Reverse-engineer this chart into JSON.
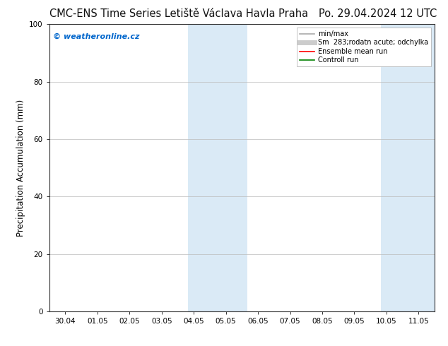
{
  "title_left": "CMC-ENS Time Series Letiště Václava Havla Praha",
  "title_right": "Po. 29.04.2024 12 UTC",
  "ylabel": "Precipitation Accumulation (mm)",
  "ylim": [
    0,
    100
  ],
  "yticks": [
    0,
    20,
    40,
    60,
    80,
    100
  ],
  "x_tick_labels": [
    "30.04",
    "01.05",
    "02.05",
    "03.05",
    "04.05",
    "05.05",
    "06.05",
    "07.05",
    "08.05",
    "09.05",
    "10.05",
    "11.05"
  ],
  "x_tick_positions": [
    0,
    1,
    2,
    3,
    4,
    5,
    6,
    7,
    8,
    9,
    10,
    11
  ],
  "xlim": [
    -0.5,
    11.5
  ],
  "shaded_regions": [
    {
      "x_start": 3.83,
      "x_end": 5.67,
      "color": "#daeaf6"
    },
    {
      "x_start": 9.83,
      "x_end": 11.5,
      "color": "#daeaf6"
    }
  ],
  "watermark_text": "© weatheronline.cz",
  "watermark_color": "#0066cc",
  "legend_entries": [
    {
      "label": "min/max",
      "color": "#aaaaaa",
      "lw": 1.2
    },
    {
      "label": "Sm  283;rodatn acute; odchylka",
      "color": "#cccccc",
      "lw": 5
    },
    {
      "label": "Ensemble mean run",
      "color": "#ff0000",
      "lw": 1.2
    },
    {
      "label": "Controll run",
      "color": "#008000",
      "lw": 1.2
    }
  ],
  "bg_color": "#ffffff",
  "plot_bg_color": "#ffffff",
  "title_fontsize": 10.5,
  "tick_fontsize": 7.5,
  "label_fontsize": 8.5,
  "legend_fontsize": 7
}
